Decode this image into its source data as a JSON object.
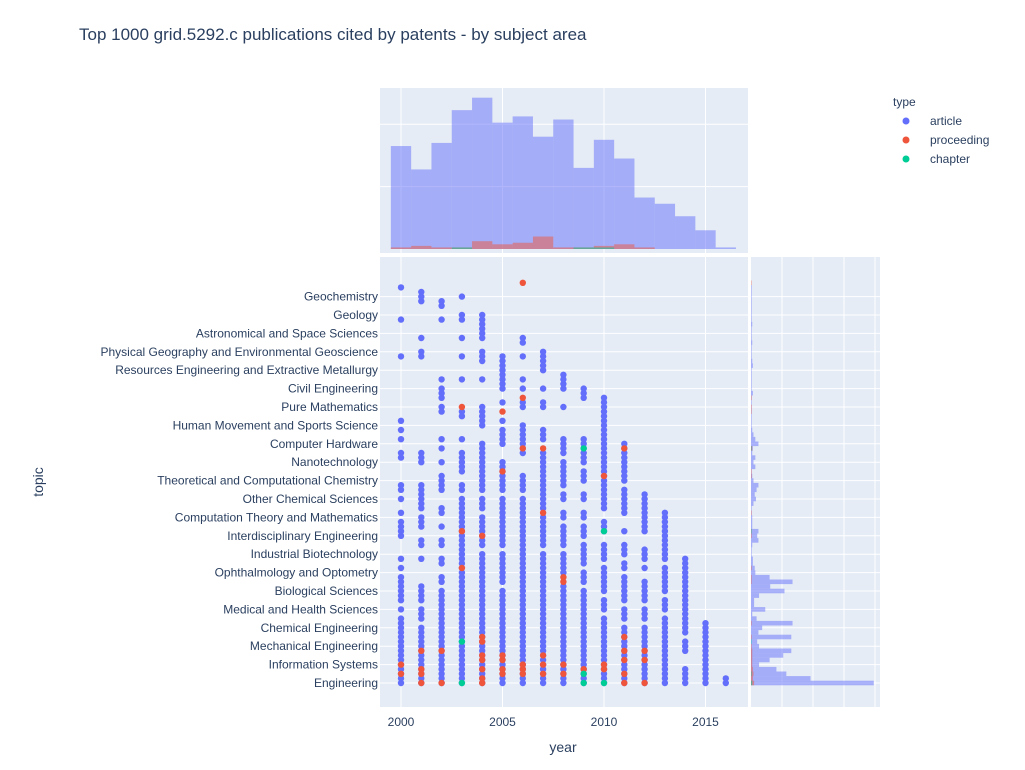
{
  "chart_data": {
    "type": "scatter",
    "title": "Top 1000 grid.5292.c publications cited by patents - by subject area",
    "xlabel": "year",
    "ylabel": "topic",
    "xlim": [
      1999,
      2017.1
    ],
    "x_ticks": [
      2000,
      2005,
      2010,
      2015
    ],
    "legend": {
      "title": "type",
      "placement": "top-right",
      "entries": [
        "article",
        "proceeding",
        "chapter"
      ]
    },
    "colors": {
      "article": "#636efa",
      "proceeding": "#EF553B",
      "chapter": "#00cc96",
      "plot_bg": "#e5ecf6"
    },
    "topic_labels": [
      "Engineering",
      "Information Systems",
      "Mechanical Engineering",
      "Chemical Engineering",
      "Medical and Health Sciences",
      "Biological Sciences",
      "Ophthalmology and Optometry",
      "Industrial Biotechnology",
      "Interdisciplinary Engineering",
      "Computation Theory and Mathematics",
      "Other Chemical Sciences",
      "Theoretical and Computational Chemistry",
      "Nanotechnology",
      "Computer Hardware",
      "Human Movement and Sports Science",
      "Pure Mathematics",
      "Civil Engineering",
      "Resources Engineering and Extractive Metallurgy",
      "Physical Geography and Environmental Geoscience",
      "Astronomical and Space Sciences",
      "Geology",
      "Geochemistry"
    ],
    "topic_label_step": 4,
    "article_rows_by_year": {
      "2000": [
        [
          0,
          14
        ],
        [
          16,
          16
        ],
        [
          18,
          23
        ],
        [
          25,
          25
        ],
        [
          27,
          27
        ],
        [
          32,
          35
        ],
        [
          37,
          37
        ],
        [
          40,
          40
        ],
        [
          42,
          43
        ],
        [
          49,
          50
        ],
        [
          53,
          53
        ],
        [
          55,
          55
        ],
        [
          57,
          57
        ],
        [
          71,
          71
        ],
        [
          79,
          79
        ],
        [
          86,
          86
        ]
      ],
      "2001": [
        [
          0,
          12
        ],
        [
          14,
          16
        ],
        [
          18,
          21
        ],
        [
          27,
          27
        ],
        [
          30,
          31
        ],
        [
          34,
          36
        ],
        [
          38,
          40
        ],
        [
          41,
          43
        ],
        [
          48,
          50
        ],
        [
          71,
          72
        ],
        [
          75,
          75
        ],
        [
          83,
          85
        ]
      ],
      "2002": [
        [
          0,
          20
        ],
        [
          22,
          23
        ],
        [
          26,
          27
        ],
        [
          30,
          31
        ],
        [
          34,
          34
        ],
        [
          37,
          38
        ],
        [
          42,
          45
        ],
        [
          48,
          48
        ],
        [
          51,
          51
        ],
        [
          53,
          53
        ],
        [
          59,
          60
        ],
        [
          62,
          64
        ],
        [
          66,
          66
        ],
        [
          79,
          79
        ],
        [
          82,
          83
        ]
      ],
      "2003": [
        [
          0,
          40
        ],
        [
          42,
          43
        ],
        [
          46,
          50
        ],
        [
          53,
          53
        ],
        [
          58,
          59
        ],
        [
          66,
          66
        ],
        [
          71,
          71
        ],
        [
          75,
          75
        ],
        [
          79,
          80
        ],
        [
          84,
          84
        ]
      ],
      "2004": [
        [
          0,
          28
        ],
        [
          30,
          36
        ],
        [
          38,
          40
        ],
        [
          42,
          50
        ],
        [
          51,
          52
        ],
        [
          56,
          60
        ],
        [
          66,
          66
        ],
        [
          70,
          72
        ],
        [
          75,
          80
        ]
      ],
      "2005": [
        [
          0,
          20
        ],
        [
          22,
          28
        ],
        [
          30,
          40
        ],
        [
          42,
          48
        ],
        [
          52,
          52
        ],
        [
          53,
          55
        ],
        [
          57,
          57
        ],
        [
          61,
          61
        ],
        [
          64,
          65
        ],
        [
          66,
          66
        ],
        [
          67,
          71
        ]
      ],
      "2006": [
        [
          0,
          40
        ],
        [
          42,
          45
        ],
        [
          50,
          56
        ],
        [
          60,
          61
        ],
        [
          64,
          64
        ],
        [
          66,
          66
        ],
        [
          71,
          71
        ],
        [
          74,
          75
        ]
      ],
      "2007": [
        [
          0,
          28
        ],
        [
          30,
          36
        ],
        [
          38,
          50
        ],
        [
          53,
          55
        ],
        [
          60,
          61
        ],
        [
          64,
          64
        ],
        [
          68,
          72
        ]
      ],
      "2008": [
        [
          0,
          21
        ],
        [
          24,
          28
        ],
        [
          30,
          34
        ],
        [
          36,
          37
        ],
        [
          40,
          41
        ],
        [
          43,
          48
        ],
        [
          50,
          53
        ],
        [
          60,
          60
        ],
        [
          64,
          67
        ]
      ],
      "2009": [
        [
          0,
          20
        ],
        [
          22,
          24
        ],
        [
          26,
          30
        ],
        [
          32,
          34
        ],
        [
          36,
          37
        ],
        [
          40,
          41
        ],
        [
          44,
          46
        ],
        [
          48,
          53
        ],
        [
          62,
          64
        ]
      ],
      "2010": [
        [
          0,
          14
        ],
        [
          16,
          18
        ],
        [
          20,
          25
        ],
        [
          27,
          30
        ],
        [
          33,
          35
        ],
        [
          38,
          62
        ]
      ],
      "2011": [
        [
          0,
          12
        ],
        [
          14,
          16
        ],
        [
          18,
          23
        ],
        [
          25,
          26
        ],
        [
          28,
          30
        ],
        [
          33,
          33
        ],
        [
          37,
          42
        ],
        [
          44,
          52
        ]
      ],
      "2012": [
        [
          0,
          12
        ],
        [
          14,
          16
        ],
        [
          18,
          22
        ],
        [
          25,
          25
        ],
        [
          27,
          29
        ],
        [
          33,
          41
        ]
      ],
      "2013": [
        [
          0,
          14
        ],
        [
          16,
          18
        ],
        [
          20,
          25
        ],
        [
          27,
          37
        ]
      ],
      "2014": [
        [
          0,
          3
        ],
        [
          7,
          9
        ],
        [
          11,
          27
        ]
      ],
      "2015": [
        [
          0,
          13
        ]
      ],
      "2016": [
        [
          0,
          1
        ]
      ]
    },
    "proceeding_points": [
      [
        2000,
        2
      ],
      [
        2000,
        4
      ],
      [
        2001,
        0
      ],
      [
        2001,
        2
      ],
      [
        2001,
        3
      ],
      [
        2001,
        7
      ],
      [
        2002,
        0
      ],
      [
        2002,
        7
      ],
      [
        2003,
        25
      ],
      [
        2003,
        33
      ],
      [
        2003,
        60
      ],
      [
        2004,
        0
      ],
      [
        2004,
        1
      ],
      [
        2004,
        3
      ],
      [
        2004,
        5
      ],
      [
        2004,
        6
      ],
      [
        2004,
        9
      ],
      [
        2004,
        10
      ],
      [
        2004,
        32
      ],
      [
        2005,
        2
      ],
      [
        2005,
        3
      ],
      [
        2005,
        5
      ],
      [
        2005,
        6
      ],
      [
        2005,
        46
      ],
      [
        2005,
        59
      ],
      [
        2006,
        2
      ],
      [
        2006,
        3
      ],
      [
        2006,
        4
      ],
      [
        2006,
        51
      ],
      [
        2006,
        62
      ],
      [
        2006,
        87
      ],
      [
        2007,
        2
      ],
      [
        2007,
        4
      ],
      [
        2007,
        6
      ],
      [
        2007,
        37
      ],
      [
        2007,
        51
      ],
      [
        2008,
        2
      ],
      [
        2008,
        4
      ],
      [
        2008,
        22
      ],
      [
        2008,
        23
      ],
      [
        2009,
        3
      ],
      [
        2010,
        3
      ],
      [
        2010,
        4
      ],
      [
        2010,
        45
      ],
      [
        2011,
        0
      ],
      [
        2011,
        2
      ],
      [
        2011,
        5
      ],
      [
        2011,
        7
      ],
      [
        2011,
        10
      ],
      [
        2011,
        51
      ],
      [
        2012,
        0
      ],
      [
        2012,
        5
      ],
      [
        2012,
        7
      ]
    ],
    "chapter_points": [
      [
        2003,
        0
      ],
      [
        2003,
        9
      ],
      [
        2009,
        0
      ],
      [
        2009,
        2
      ],
      [
        2009,
        51
      ],
      [
        2010,
        0
      ],
      [
        2010,
        33
      ]
    ],
    "year_histogram": {
      "bins": [
        2000,
        2001,
        2002,
        2003,
        2004,
        2005,
        2006,
        2007,
        2008,
        2009,
        2010,
        2011,
        2012,
        2013,
        2014,
        2015,
        2016
      ],
      "article": [
        66,
        51,
        68,
        89,
        97,
        81,
        85,
        72,
        83,
        52,
        70,
        58,
        33,
        29,
        21,
        12,
        1
      ],
      "proceeding": [
        1,
        2,
        1,
        1,
        5,
        3,
        4,
        8,
        1,
        1,
        2,
        3,
        1,
        0,
        0,
        0,
        0
      ],
      "chapter": [
        0,
        0,
        0,
        1,
        0,
        0,
        0,
        0,
        0,
        1,
        1,
        0,
        0,
        0,
        0,
        0,
        0
      ],
      "ylim": [
        0,
        103
      ]
    },
    "topic_histogram": {
      "article": [
        198,
        96,
        57,
        41,
        13,
        30,
        52,
        65,
        13,
        10,
        65,
        12,
        18,
        67,
        9,
        2,
        23,
        5,
        5,
        13,
        54,
        31,
        67,
        30,
        7,
        6,
        3,
        3,
        1,
        1,
        2,
        12,
        10,
        12,
        2,
        2,
        2,
        1,
        1,
        4,
        8,
        6,
        9,
        12,
        4,
        2,
        1,
        7,
        4,
        7,
        2,
        3,
        12,
        7,
        4,
        2,
        1,
        1,
        1,
        1,
        1,
        1,
        1,
        3,
        1,
        1,
        1,
        1,
        1,
        3,
        2,
        1,
        1,
        1,
        2,
        1,
        1,
        1,
        2,
        1,
        1,
        1,
        1,
        1,
        1,
        1,
        1,
        0
      ],
      "proceeding": [
        5,
        3,
        4,
        3,
        2,
        2,
        2,
        2,
        1,
        0,
        1,
        0,
        0,
        1,
        0,
        0,
        0,
        0,
        0,
        0,
        0,
        0,
        1,
        1,
        0,
        1,
        0,
        0,
        0,
        0,
        0,
        0,
        1,
        1,
        0,
        0,
        0,
        1,
        0,
        0,
        0,
        0,
        0,
        0,
        0,
        1,
        1,
        0,
        0,
        0,
        0,
        2,
        0,
        0,
        0,
        0,
        0,
        0,
        0,
        1,
        1,
        0,
        1,
        0,
        0,
        0,
        0,
        0,
        0,
        0,
        0,
        0,
        0,
        0,
        0,
        0,
        0,
        0,
        0,
        0,
        0,
        0,
        0,
        0,
        0,
        0,
        0,
        1
      ],
      "chapter": [
        2,
        0,
        1,
        0,
        0,
        0,
        0,
        0,
        0,
        1,
        0,
        0,
        0,
        0,
        0,
        0,
        0,
        0,
        0,
        0,
        0,
        0,
        0,
        0,
        0,
        0,
        0,
        0,
        0,
        0,
        0,
        0,
        0,
        1,
        0,
        0,
        0,
        0,
        0,
        0,
        0,
        0,
        0,
        0,
        0,
        0,
        0,
        0,
        0,
        0,
        0,
        1,
        0,
        0,
        0,
        0,
        0,
        0,
        0,
        0,
        0,
        0,
        0,
        0,
        0,
        0,
        0,
        0,
        0,
        0,
        0,
        0,
        0,
        0,
        0,
        0,
        0,
        0,
        0,
        0,
        0,
        0,
        0,
        0,
        0,
        0,
        0,
        0
      ],
      "xlim": [
        0,
        205
      ]
    }
  }
}
